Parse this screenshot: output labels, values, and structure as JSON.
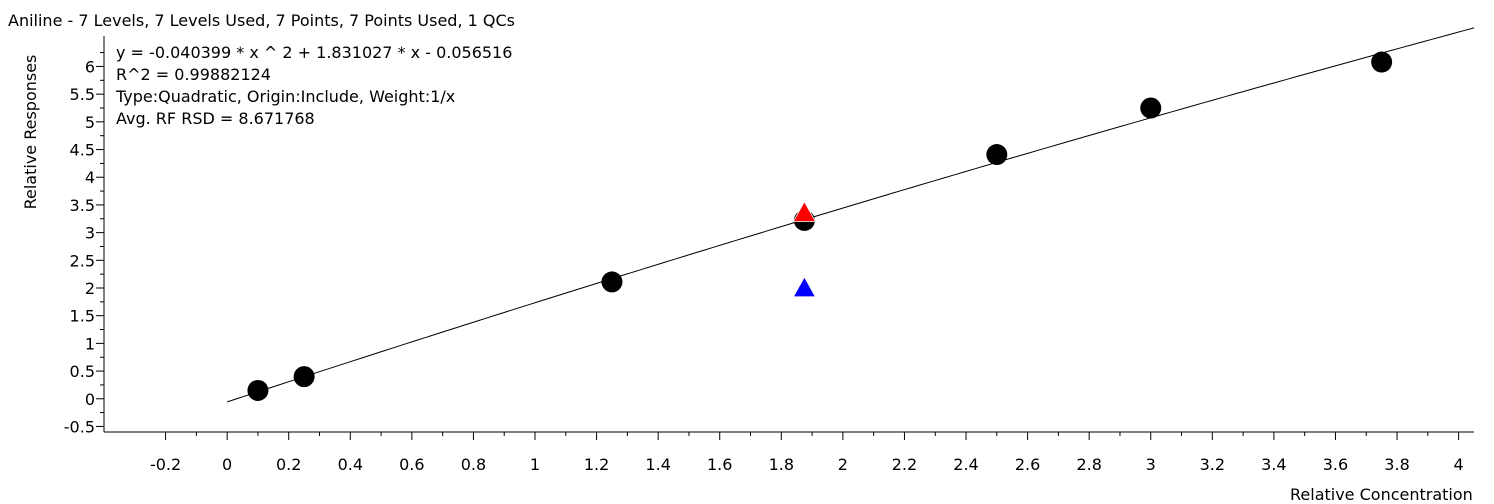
{
  "chart_data": {
    "type": "scatter",
    "title": "Aniline - 7 Levels, 7 Levels Used, 7 Points, 7 Points Used, 1 QCs",
    "annotations": [
      "y = -0.040399 * x ^ 2  + 1.831027 * x  - 0.056516",
      "R^2 = 0.99882124",
      "Type:Quadratic, Origin:Include, Weight:1/x",
      "Avg. RF RSD = 8.671768"
    ],
    "xlabel": "Relative Concentration",
    "ylabel": "Relative Responses",
    "xlim": [
      -0.4,
      4.05
    ],
    "ylim": [
      -0.6,
      6.55
    ],
    "x_ticks": [
      -0.2,
      0,
      0.2,
      0.4,
      0.6,
      0.8,
      1,
      1.2,
      1.4,
      1.6,
      1.8,
      2,
      2.2,
      2.4,
      2.6,
      2.8,
      3,
      3.2,
      3.4,
      3.6,
      3.8,
      4
    ],
    "x_tick_labels": [
      "-0.2",
      "0",
      "0.2",
      "0.4",
      "0.6",
      "0.8",
      "1",
      "1.2",
      "1.4",
      "1.6",
      "1.8",
      "2",
      "2.2",
      "2.4",
      "2.6",
      "2.8",
      "3",
      "3.2",
      "3.4",
      "3.6",
      "3.8",
      "4"
    ],
    "y_ticks": [
      -0.5,
      0,
      0.5,
      1,
      1.5,
      2,
      2.5,
      3,
      3.5,
      4,
      4.5,
      5,
      5.5,
      6
    ],
    "y_tick_labels": [
      "-0.5",
      "0",
      "0.5",
      "1",
      "1.5",
      "2",
      "2.5",
      "3",
      "3.5",
      "4",
      "4.5",
      "5",
      "5.5",
      "6"
    ],
    "fit": {
      "a": -0.040399,
      "b": 1.831027,
      "c": -0.056516,
      "x_range": [
        0,
        4.05
      ]
    },
    "calibration_points": {
      "x": [
        0.1,
        0.25,
        1.25,
        1.875,
        2.5,
        3.0,
        3.75
      ],
      "y": [
        0.15,
        0.4,
        2.11,
        3.22,
        4.41,
        5.25,
        6.08
      ]
    },
    "qc_points": [
      {
        "x": 1.875,
        "y": 3.36,
        "color": "#ff0000",
        "marker": "triangle"
      },
      {
        "x": 1.875,
        "y": 2.0,
        "color": "#0000ff",
        "marker": "triangle"
      }
    ],
    "grid": false,
    "colors": {
      "point": "#000000",
      "line": "#000000"
    }
  }
}
